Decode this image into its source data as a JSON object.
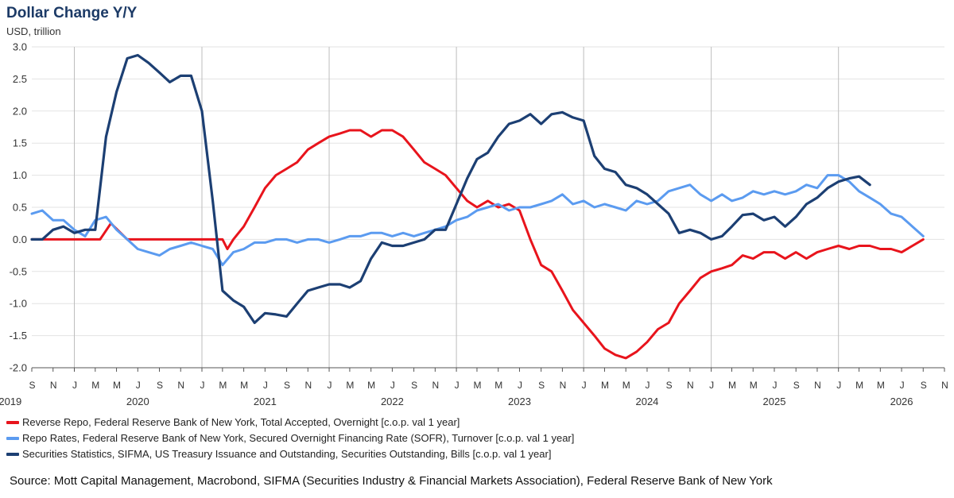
{
  "chart_data": {
    "type": "line",
    "title": "Dollar Change Y/Y",
    "ylabel": "USD, trillion",
    "ylim": [
      -2.0,
      3.0
    ],
    "yticks": [
      "3.0",
      "2.5",
      "2.0",
      "1.5",
      "1.0",
      "0.5",
      "0.0",
      "-0.5",
      "-1.0",
      "-1.5",
      "-2.0"
    ],
    "x_range": [
      "2019-09-01",
      "2026-11-01"
    ],
    "month_ticks": [
      "S",
      "N",
      "J",
      "M",
      "M",
      "J",
      "S",
      "N",
      "J",
      "M",
      "M",
      "J",
      "S",
      "N",
      "J",
      "M",
      "M",
      "J",
      "S",
      "N",
      "J",
      "M",
      "M",
      "J",
      "S",
      "N",
      "J",
      "M",
      "M",
      "J",
      "S",
      "N",
      "J",
      "M",
      "M",
      "J",
      "S",
      "N",
      "J",
      "M",
      "M",
      "J",
      "S",
      "N"
    ],
    "year_labels": [
      {
        "label": "2019",
        "year": 2019
      },
      {
        "label": "2020",
        "year": 2020
      },
      {
        "label": "2021",
        "year": 2021
      },
      {
        "label": "2022",
        "year": 2022
      },
      {
        "label": "2023",
        "year": 2023
      },
      {
        "label": "2024",
        "year": 2024
      },
      {
        "label": "2025",
        "year": 2025
      },
      {
        "label": "2026",
        "year": 2026
      }
    ],
    "legend_position": "bottom-left",
    "grid": true,
    "series": [
      {
        "name": "Reverse Repo, Federal Reserve Bank of New York, Total Accepted, Overnight [c.o.p. val 1 year]",
        "color": "#e8141c",
        "x": [
          "2019-09-01",
          "2020-01-01",
          "2020-03-15",
          "2020-04-15",
          "2020-06-01",
          "2020-10-01",
          "2021-01-01",
          "2021-03-01",
          "2021-03-15",
          "2021-04-01",
          "2021-05-01",
          "2021-06-01",
          "2021-07-01",
          "2021-08-01",
          "2021-09-01",
          "2021-10-01",
          "2021-11-01",
          "2021-12-01",
          "2022-01-01",
          "2022-02-01",
          "2022-03-01",
          "2022-04-01",
          "2022-05-01",
          "2022-06-01",
          "2022-07-01",
          "2022-08-01",
          "2022-09-01",
          "2022-10-01",
          "2022-11-01",
          "2022-12-01",
          "2023-01-01",
          "2023-02-01",
          "2023-03-01",
          "2023-04-01",
          "2023-05-01",
          "2023-06-01",
          "2023-07-01",
          "2023-08-01",
          "2023-09-01",
          "2023-10-01",
          "2023-11-01",
          "2023-12-01",
          "2024-01-01",
          "2024-02-01",
          "2024-03-01",
          "2024-04-01",
          "2024-05-01",
          "2024-06-01",
          "2024-07-01",
          "2024-08-01",
          "2024-09-01",
          "2024-10-01",
          "2024-11-01",
          "2024-12-01",
          "2025-01-01",
          "2025-02-01",
          "2025-03-01",
          "2025-04-01",
          "2025-05-01",
          "2025-06-01",
          "2025-07-01",
          "2025-08-01",
          "2025-09-01",
          "2025-10-01",
          "2025-11-01",
          "2025-12-01",
          "2026-01-01",
          "2026-02-01",
          "2026-03-01",
          "2026-04-01",
          "2026-05-01",
          "2026-06-01",
          "2026-07-01",
          "2026-08-01",
          "2026-09-01"
        ],
        "y": [
          0.0,
          0.0,
          0.0,
          0.25,
          0.0,
          0.0,
          0.0,
          0.0,
          -0.15,
          0.0,
          0.2,
          0.5,
          0.8,
          1.0,
          1.1,
          1.2,
          1.4,
          1.5,
          1.6,
          1.65,
          1.7,
          1.7,
          1.6,
          1.7,
          1.7,
          1.6,
          1.4,
          1.2,
          1.1,
          1.0,
          0.8,
          0.6,
          0.5,
          0.6,
          0.5,
          0.55,
          0.45,
          0.0,
          -0.4,
          -0.5,
          -0.8,
          -1.1,
          -1.3,
          -1.5,
          -1.7,
          -1.8,
          -1.85,
          -1.75,
          -1.6,
          -1.4,
          -1.3,
          -1.0,
          -0.8,
          -0.6,
          -0.5,
          -0.45,
          -0.4,
          -0.25,
          -0.3,
          -0.2,
          -0.2,
          -0.3,
          -0.2,
          -0.3,
          -0.2,
          -0.15,
          -0.1,
          -0.15,
          -0.1,
          -0.1,
          -0.15,
          -0.15,
          -0.2,
          -0.1,
          0.0
        ]
      },
      {
        "name": "Repo Rates, Federal Reserve Bank of New York, Secured Overnight Financing Rate (SOFR), Turnover [c.o.p. val 1 year]",
        "color": "#5b9bf0",
        "x": [
          "2019-09-01",
          "2019-10-01",
          "2019-11-01",
          "2019-12-01",
          "2020-01-01",
          "2020-02-01",
          "2020-03-01",
          "2020-04-01",
          "2020-05-01",
          "2020-06-01",
          "2020-07-01",
          "2020-08-01",
          "2020-09-01",
          "2020-10-01",
          "2020-11-01",
          "2020-12-01",
          "2021-01-01",
          "2021-02-01",
          "2021-03-01",
          "2021-04-01",
          "2021-05-01",
          "2021-06-01",
          "2021-07-01",
          "2021-08-01",
          "2021-09-01",
          "2021-10-01",
          "2021-11-01",
          "2021-12-01",
          "2022-01-01",
          "2022-02-01",
          "2022-03-01",
          "2022-04-01",
          "2022-05-01",
          "2022-06-01",
          "2022-07-01",
          "2022-08-01",
          "2022-09-01",
          "2022-10-01",
          "2022-11-01",
          "2022-12-01",
          "2023-01-01",
          "2023-02-01",
          "2023-03-01",
          "2023-04-01",
          "2023-05-01",
          "2023-06-01",
          "2023-07-01",
          "2023-08-01",
          "2023-09-01",
          "2023-10-01",
          "2023-11-01",
          "2023-12-01",
          "2024-01-01",
          "2024-02-01",
          "2024-03-01",
          "2024-04-01",
          "2024-05-01",
          "2024-06-01",
          "2024-07-01",
          "2024-08-01",
          "2024-09-01",
          "2024-10-01",
          "2024-11-01",
          "2024-12-01",
          "2025-01-01",
          "2025-02-01",
          "2025-03-01",
          "2025-04-01",
          "2025-05-01",
          "2025-06-01",
          "2025-07-01",
          "2025-08-01",
          "2025-09-01",
          "2025-10-01",
          "2025-11-01",
          "2025-12-01",
          "2026-01-01",
          "2026-02-01",
          "2026-03-01",
          "2026-04-01",
          "2026-05-01",
          "2026-06-01",
          "2026-07-01",
          "2026-08-01",
          "2026-09-01"
        ],
        "y": [
          0.4,
          0.45,
          0.3,
          0.3,
          0.15,
          0.05,
          0.3,
          0.35,
          0.15,
          0.0,
          -0.15,
          -0.2,
          -0.25,
          -0.15,
          -0.1,
          -0.05,
          -0.1,
          -0.15,
          -0.4,
          -0.2,
          -0.15,
          -0.05,
          -0.05,
          0.0,
          0.0,
          -0.05,
          0.0,
          0.0,
          -0.05,
          0.0,
          0.05,
          0.05,
          0.1,
          0.1,
          0.05,
          0.1,
          0.05,
          0.1,
          0.15,
          0.2,
          0.3,
          0.35,
          0.45,
          0.5,
          0.55,
          0.45,
          0.5,
          0.5,
          0.55,
          0.6,
          0.7,
          0.55,
          0.6,
          0.5,
          0.55,
          0.5,
          0.45,
          0.6,
          0.55,
          0.6,
          0.75,
          0.8,
          0.85,
          0.7,
          0.6,
          0.7,
          0.6,
          0.65,
          0.75,
          0.7,
          0.75,
          0.7,
          0.75,
          0.85,
          0.8,
          1.0,
          1.0,
          0.9,
          0.75,
          0.65,
          0.55,
          0.4,
          0.35,
          0.2,
          0.05
        ]
      },
      {
        "name": "Securities Statistics, SIFMA, US Treasury Issuance and Outstanding, Securities Outstanding, Bills [c.o.p. val 1 year]",
        "color": "#1c3f73",
        "x": [
          "2019-09-01",
          "2019-10-01",
          "2019-11-01",
          "2019-12-01",
          "2020-01-01",
          "2020-02-01",
          "2020-03-01",
          "2020-04-01",
          "2020-05-01",
          "2020-06-01",
          "2020-07-01",
          "2020-08-01",
          "2020-09-01",
          "2020-10-01",
          "2020-11-01",
          "2020-12-01",
          "2021-01-01",
          "2021-02-01",
          "2021-03-01",
          "2021-04-01",
          "2021-05-01",
          "2021-06-01",
          "2021-07-01",
          "2021-08-01",
          "2021-09-01",
          "2021-10-01",
          "2021-11-01",
          "2021-12-01",
          "2022-01-01",
          "2022-02-01",
          "2022-03-01",
          "2022-04-01",
          "2022-05-01",
          "2022-06-01",
          "2022-07-01",
          "2022-08-01",
          "2022-09-01",
          "2022-10-01",
          "2022-11-01",
          "2022-12-01",
          "2023-01-01",
          "2023-02-01",
          "2023-03-01",
          "2023-04-01",
          "2023-05-01",
          "2023-06-01",
          "2023-07-01",
          "2023-08-01",
          "2023-09-01",
          "2023-10-01",
          "2023-11-01",
          "2023-12-01",
          "2024-01-01",
          "2024-02-01",
          "2024-03-01",
          "2024-04-01",
          "2024-05-01",
          "2024-06-01",
          "2024-07-01",
          "2024-08-01",
          "2024-09-01",
          "2024-10-01",
          "2024-11-01",
          "2024-12-01",
          "2025-01-01",
          "2025-02-01",
          "2025-03-01",
          "2025-04-01",
          "2025-05-01",
          "2025-06-01",
          "2025-07-01",
          "2025-08-01",
          "2025-09-01",
          "2025-10-01",
          "2025-11-01",
          "2025-12-01",
          "2026-01-01",
          "2026-02-01",
          "2026-03-01",
          "2026-04-01",
          "2026-05-01",
          "2026-06-01",
          "2026-07-01",
          "2026-08-01",
          "2026-09-01"
        ],
        "y": [
          0.0,
          0.0,
          0.15,
          0.2,
          0.1,
          0.15,
          0.15,
          1.6,
          2.3,
          2.82,
          2.87,
          2.75,
          2.6,
          2.45,
          2.55,
          2.55,
          2.0,
          0.6,
          -0.8,
          -0.95,
          -1.05,
          -1.3,
          -1.15,
          -1.17,
          -1.2,
          -1.0,
          -0.8,
          -0.75,
          -0.7,
          -0.7,
          -0.75,
          -0.65,
          -0.3,
          -0.05,
          -0.1,
          -0.1,
          -0.05,
          0.0,
          0.15,
          0.15,
          0.55,
          0.95,
          1.25,
          1.35,
          1.6,
          1.8,
          1.85,
          1.95,
          1.8,
          1.95,
          1.98,
          1.9,
          1.85,
          1.3,
          1.1,
          1.05,
          0.85,
          0.8,
          0.7,
          0.55,
          0.4,
          0.1,
          0.15,
          0.1,
          0.0,
          0.05,
          0.2,
          0.38,
          0.4,
          0.3,
          0.35,
          0.2,
          0.35,
          0.55,
          0.65,
          0.8,
          0.9,
          0.95,
          0.98,
          0.85,
          null,
          null,
          null,
          null,
          null
        ]
      }
    ]
  },
  "source": "Source: Mott Capital Management, Macrobond, SIFMA (Securities Industry & Financial Markets Association), Federal Reserve Bank of New York"
}
